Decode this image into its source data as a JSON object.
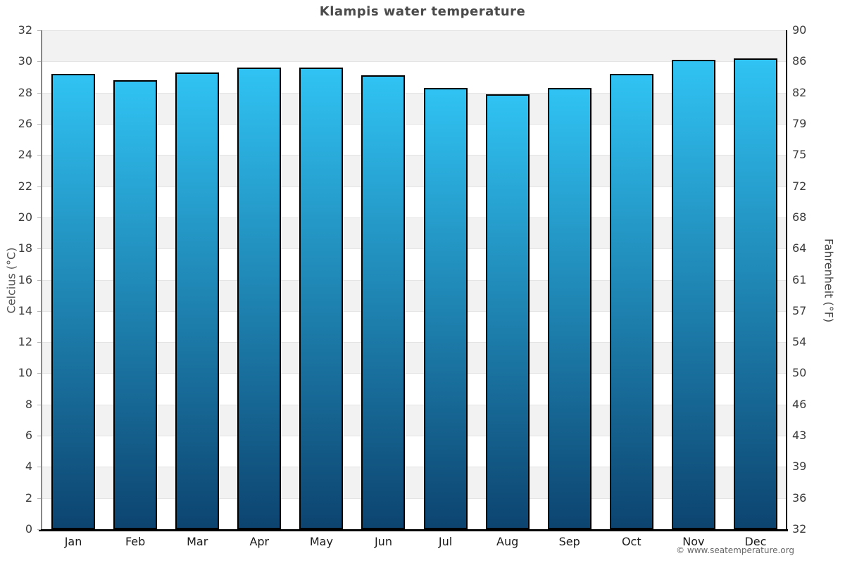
{
  "title": "Klampis water temperature",
  "footer": "© www.seatemperature.org",
  "chart_data": {
    "type": "bar",
    "title": "Klampis water temperature",
    "categories": [
      "Jan",
      "Feb",
      "Mar",
      "Apr",
      "May",
      "Jun",
      "Jul",
      "Aug",
      "Sep",
      "Oct",
      "Nov",
      "Dec"
    ],
    "values": [
      29.2,
      28.8,
      29.3,
      29.6,
      29.6,
      29.1,
      28.3,
      27.9,
      28.3,
      29.2,
      30.1,
      30.2
    ],
    "units": "°C",
    "ylabel_left": "Celcius (°C)",
    "ylabel_right": "Fahrenheit (°F)",
    "ylim_celsius": [
      0,
      32
    ],
    "celsius_ticks": [
      0,
      2,
      4,
      6,
      8,
      10,
      12,
      14,
      16,
      18,
      20,
      22,
      24,
      26,
      28,
      30,
      32
    ],
    "fahrenheit_tick_labels": [
      "32",
      "36",
      "39",
      "43",
      "46",
      "50",
      "54",
      "57",
      "61",
      "64",
      "68",
      "72",
      "75",
      "79",
      "82",
      "86",
      "90"
    ],
    "grid": "horizontal-bands-every-2C",
    "legend": "none",
    "colors": {
      "bar_gradient_top": "#30c3f3",
      "bar_gradient_bottom": "#0d4470",
      "bar_border": "#000000",
      "band_gray": "#f2f2f2",
      "band_white": "#ffffff",
      "title_text": "#4a4a4a",
      "tick_text": "#3d3d3d",
      "footer_text": "#666666"
    }
  }
}
